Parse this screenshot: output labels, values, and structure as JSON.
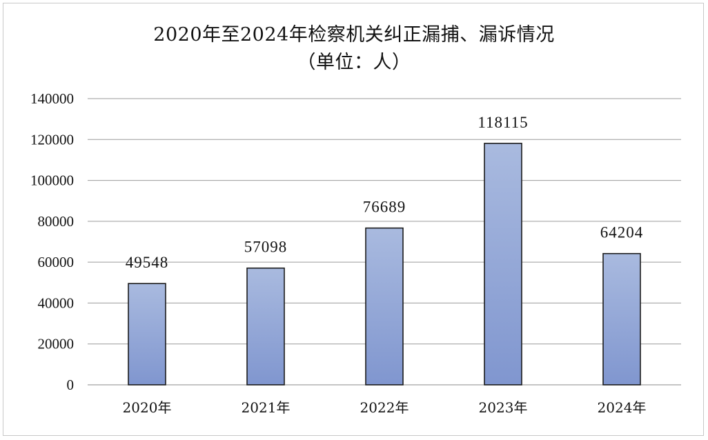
{
  "chart_data": {
    "type": "bar",
    "title": "2020年至2024年检察机关纠正漏捕、漏诉情况",
    "subtitle": "（单位：人）",
    "categories": [
      "2020年",
      "2021年",
      "2022年",
      "2023年",
      "2024年"
    ],
    "values": [
      49548,
      57098,
      76689,
      118115,
      64204
    ],
    "data_labels": [
      "49548",
      "57098",
      "76689",
      "118115",
      "64204"
    ],
    "ylim": [
      0,
      140000
    ],
    "yticks": [
      0,
      20000,
      40000,
      60000,
      80000,
      100000,
      120000,
      140000
    ],
    "ytick_labels": [
      "0",
      "20000",
      "40000",
      "60000",
      "80000",
      "100000",
      "120000",
      "140000"
    ],
    "grid": true,
    "legend": "none",
    "colors": {
      "bar_top": "#a9badf",
      "bar_bottom": "#8096cf",
      "bar_stroke": "#1a1a1a",
      "grid": "#9a9a9a",
      "axis": "#8a8a8a"
    }
  }
}
